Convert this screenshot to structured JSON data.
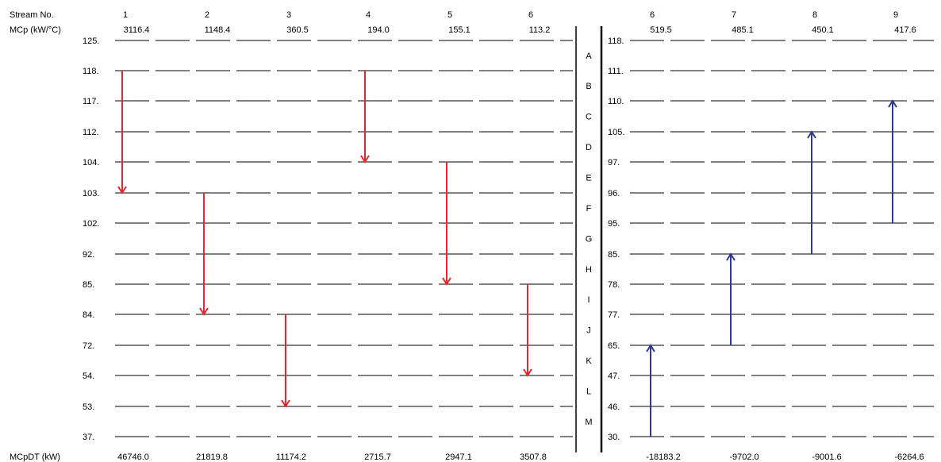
{
  "header": {
    "stream_no_label": "Stream No.",
    "mcp_label": "MCp (kW/°C)",
    "mcpdt_label": "MCpDT (kW)"
  },
  "colors": {
    "hot": "#e8262b",
    "cold": "#2e3a92",
    "grid": "#000000",
    "text": "#000000"
  },
  "intervals": [
    "A",
    "B",
    "C",
    "D",
    "E",
    "F",
    "G",
    "H",
    "I",
    "J",
    "K",
    "L",
    "M"
  ],
  "hot_temps": [
    "125.",
    "118.",
    "117.",
    "112.",
    "104.",
    "103.",
    "102.",
    "92.",
    "85.",
    "84.",
    "72.",
    "54.",
    "53.",
    "37."
  ],
  "cold_temps": [
    "118.",
    "111.",
    "110.",
    "105.",
    "97.",
    "96.",
    "95.",
    "85.",
    "78.",
    "77.",
    "65.",
    "47.",
    "46.",
    "30."
  ],
  "hot_streams": [
    {
      "no": "1",
      "mcp": "3116.4",
      "mcpdt": "46746.0",
      "from_level": 1,
      "to_level": 5
    },
    {
      "no": "2",
      "mcp": "1148.4",
      "mcpdt": "21819.8",
      "from_level": 5,
      "to_level": 9
    },
    {
      "no": "3",
      "mcp": "360.5",
      "mcpdt": "11174.2",
      "from_level": 9,
      "to_level": 12
    },
    {
      "no": "4",
      "mcp": "194.0",
      "mcpdt": "2715.7",
      "from_level": 1,
      "to_level": 4
    },
    {
      "no": "5",
      "mcp": "155.1",
      "mcpdt": "2947.1",
      "from_level": 4,
      "to_level": 8
    },
    {
      "no": "6",
      "mcp": "113.2",
      "mcpdt": "3507.8",
      "from_level": 8,
      "to_level": 11
    }
  ],
  "cold_streams": [
    {
      "no": "6",
      "mcp": "519.5",
      "mcpdt": "-18183.2",
      "from_level": 13,
      "to_level": 10
    },
    {
      "no": "7",
      "mcp": "485.1",
      "mcpdt": "-9702.0",
      "from_level": 10,
      "to_level": 7
    },
    {
      "no": "8",
      "mcp": "450.1",
      "mcpdt": "-9001.6",
      "from_level": 7,
      "to_level": 3
    },
    {
      "no": "9",
      "mcp": "417.6",
      "mcpdt": "-6264.6",
      "from_level": 6,
      "to_level": 2
    }
  ]
}
